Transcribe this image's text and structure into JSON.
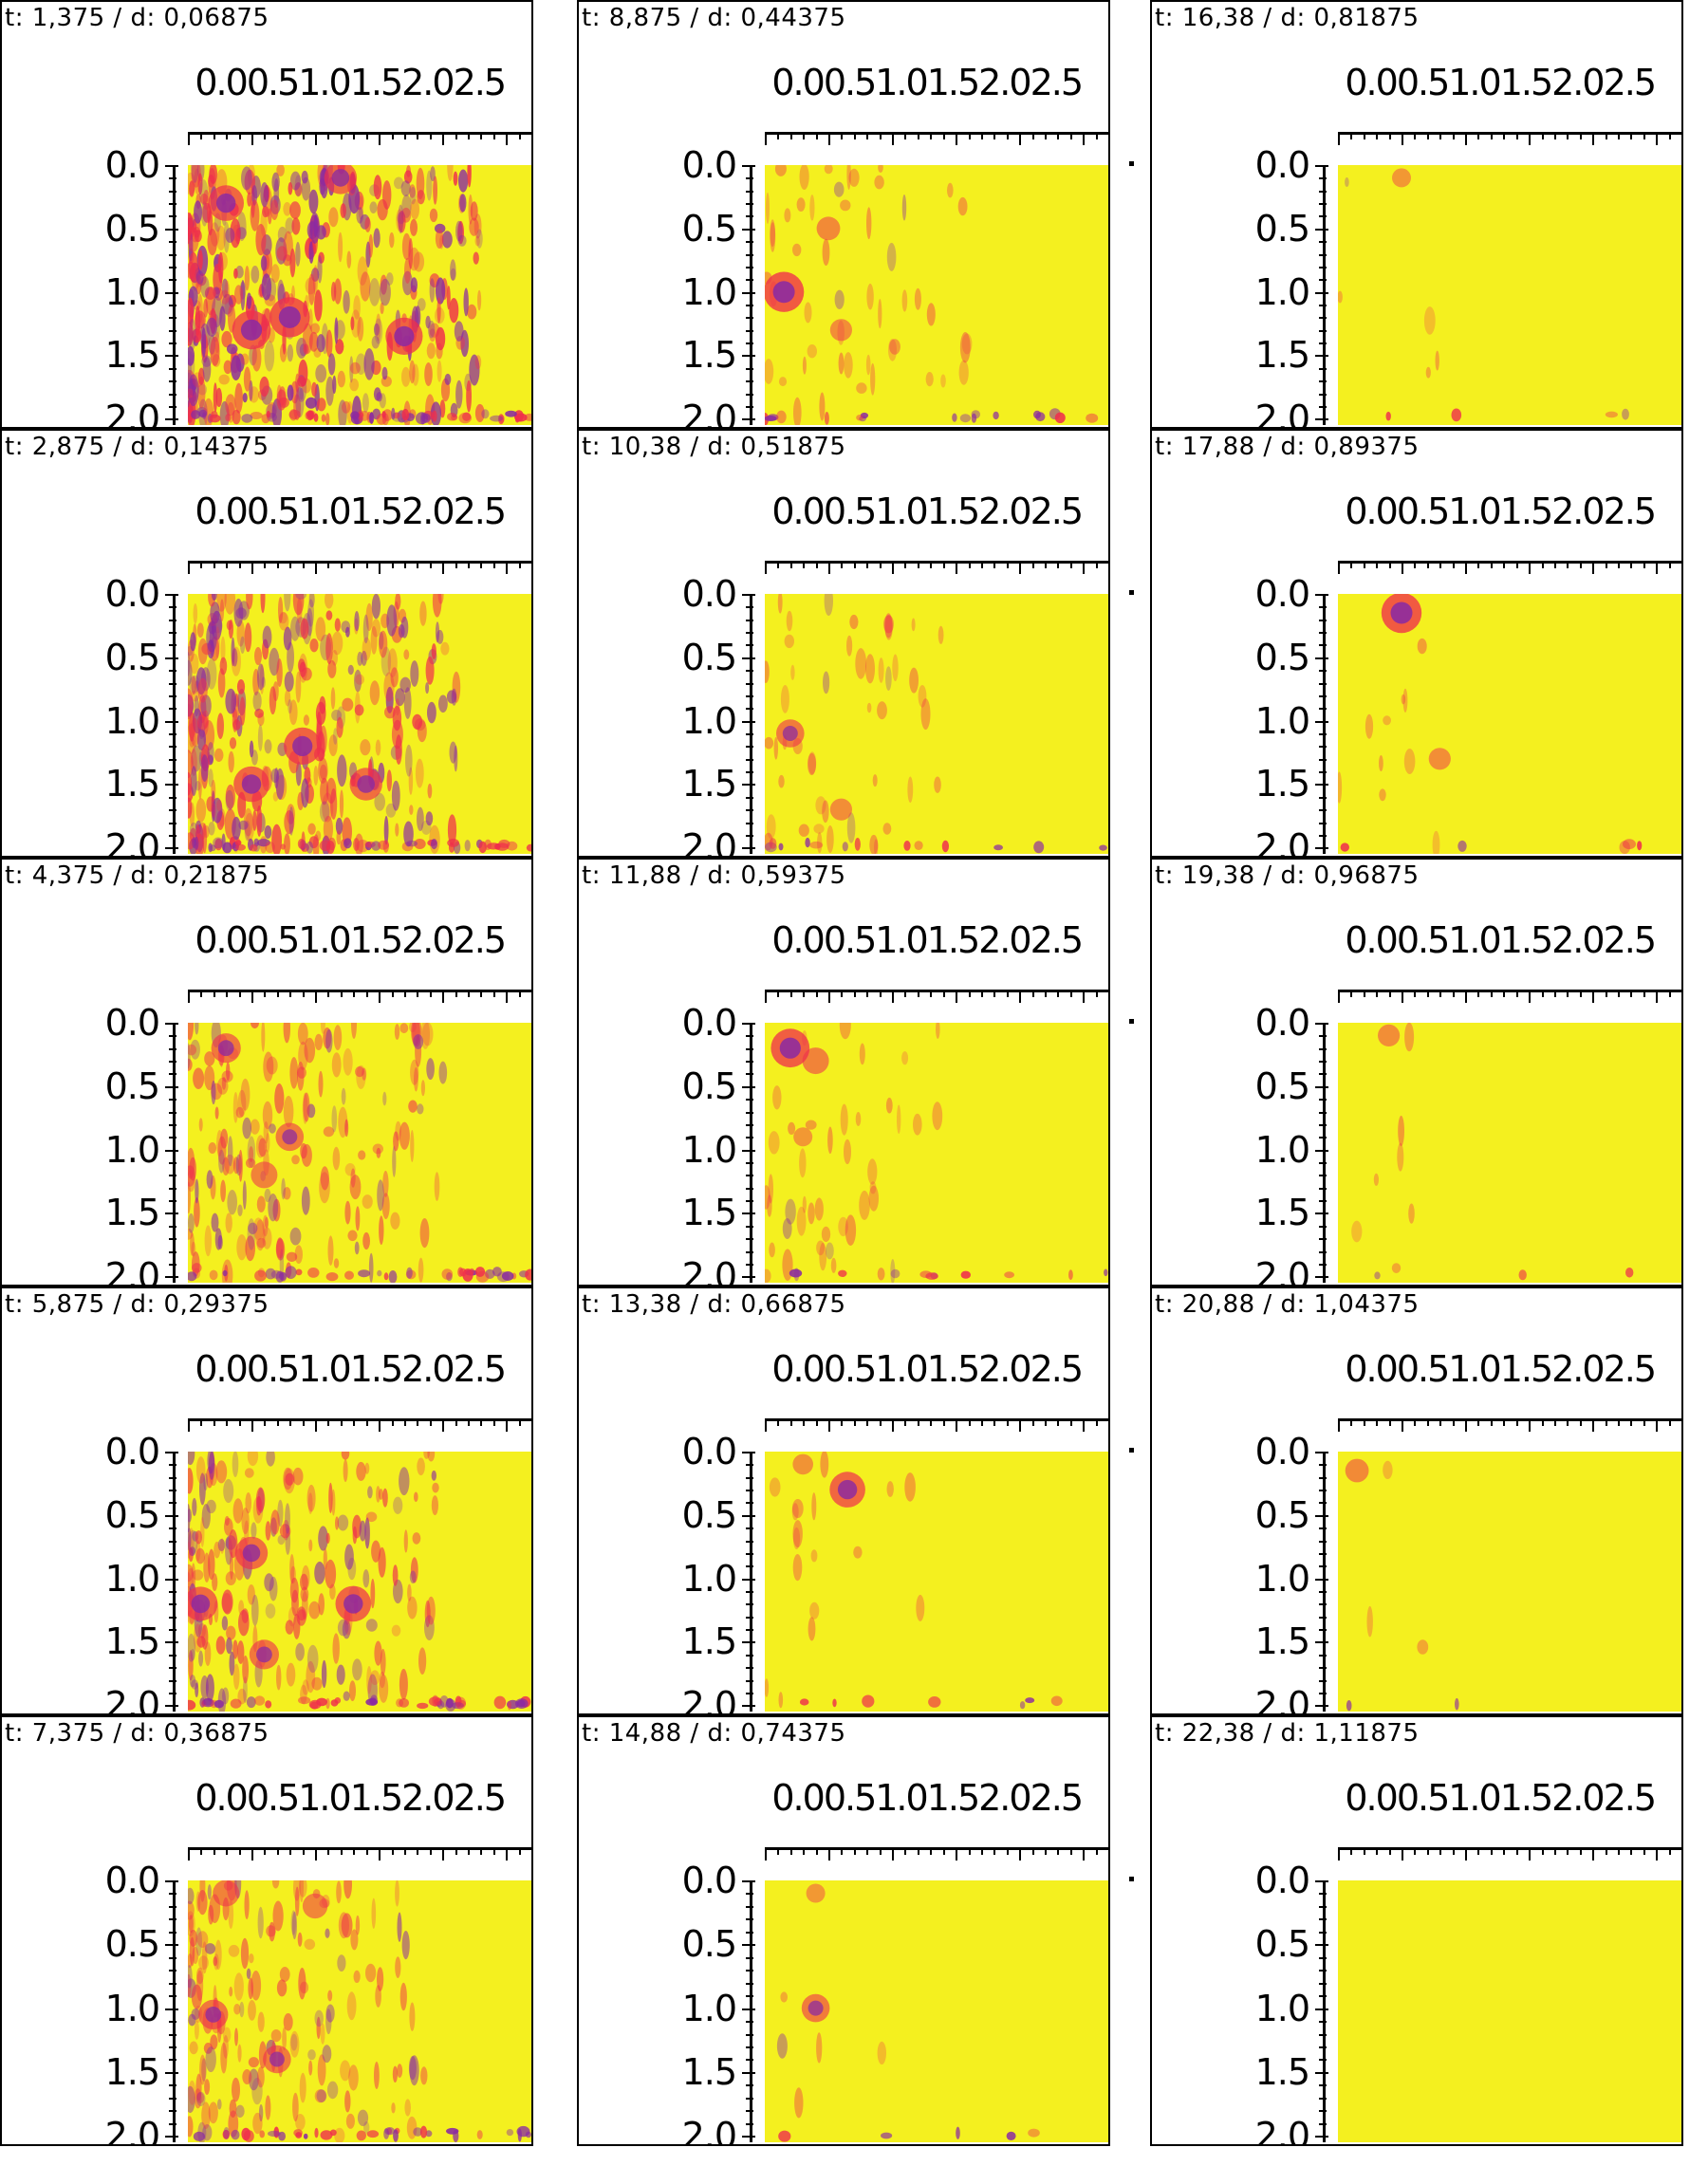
{
  "chart_data": {
    "type": "heatmap",
    "layout": "5 rows x 3 columns of small-multiple panels, read down each column",
    "colormap": [
      "#f4f01f",
      "#ef2f4c",
      "#8a2aa2"
    ],
    "x_ticks": [
      "0.0",
      "0.5",
      "1.0",
      "1.5",
      "2.0",
      "2.5"
    ],
    "y_ticks": [
      "0.0",
      "0.5",
      "1.0",
      "1.5",
      "2.0"
    ],
    "xlim": [
      0,
      2.7
    ],
    "ylim": [
      0,
      2.05
    ],
    "y_inverted": true,
    "panels": [
      {
        "title": "t: 1,375 / d: 0,06875",
        "intensity": 1.0,
        "spread": 1.0,
        "blobs": [
          [
            0.8,
            1.2,
            0.95
          ],
          [
            0.3,
            0.3,
            0.8
          ],
          [
            1.7,
            1.35,
            0.85
          ],
          [
            0.5,
            1.3,
            0.9
          ],
          [
            1.2,
            0.1,
            0.7
          ]
        ]
      },
      {
        "title": "t: 2,875 / d: 0,14375",
        "intensity": 0.85,
        "spread": 0.92,
        "blobs": [
          [
            0.9,
            1.2,
            0.85
          ],
          [
            0.5,
            1.5,
            0.8
          ],
          [
            1.4,
            1.5,
            0.7
          ]
        ]
      },
      {
        "title": "t: 4,375 / d: 0,21875",
        "intensity": 0.6,
        "spread": 0.9,
        "blobs": [
          [
            0.3,
            0.2,
            0.6
          ],
          [
            0.8,
            0.9,
            0.55
          ],
          [
            0.6,
            1.2,
            0.5
          ]
        ]
      },
      {
        "title": "t: 5,875 / d: 0,29375",
        "intensity": 0.7,
        "spread": 0.85,
        "blobs": [
          [
            0.1,
            1.2,
            0.75
          ],
          [
            0.5,
            0.8,
            0.7
          ],
          [
            1.3,
            1.2,
            0.8
          ],
          [
            0.6,
            1.6,
            0.6
          ]
        ]
      },
      {
        "title": "t: 7,375 / d: 0,36875",
        "intensity": 0.55,
        "spread": 0.82,
        "blobs": [
          [
            0.2,
            1.05,
            0.6
          ],
          [
            0.7,
            1.4,
            0.55
          ],
          [
            0.3,
            0.1,
            0.5
          ],
          [
            1.0,
            0.2,
            0.45
          ]
        ]
      },
      {
        "title": "t: 8,875 / d: 0,44375",
        "intensity": 0.3,
        "spread": 0.7,
        "blobs": [
          [
            0.15,
            1.0,
            0.95
          ],
          [
            0.5,
            0.5,
            0.4
          ],
          [
            0.6,
            1.3,
            0.35
          ]
        ]
      },
      {
        "title": "t: 10,38 / d: 0,51875",
        "intensity": 0.22,
        "spread": 0.62,
        "blobs": [
          [
            0.2,
            1.1,
            0.55
          ],
          [
            0.6,
            1.7,
            0.35
          ]
        ]
      },
      {
        "title": "t: 11,88 / d: 0,59375",
        "intensity": 0.2,
        "spread": 0.6,
        "blobs": [
          [
            0.2,
            0.2,
            0.9
          ],
          [
            0.4,
            0.3,
            0.5
          ],
          [
            0.3,
            0.9,
            0.25
          ]
        ]
      },
      {
        "title": "t: 13,38 / d: 0,66875",
        "intensity": 0.12,
        "spread": 0.6,
        "blobs": [
          [
            0.65,
            0.3,
            0.8
          ],
          [
            0.3,
            0.1,
            0.3
          ]
        ]
      },
      {
        "title": "t: 14,88 / d: 0,74375",
        "intensity": 0.08,
        "spread": 0.4,
        "blobs": [
          [
            0.4,
            1.0,
            0.55
          ],
          [
            0.4,
            0.1,
            0.25
          ]
        ]
      },
      {
        "title": "t: 16,38 / d: 0,81875",
        "intensity": 0.06,
        "spread": 0.35,
        "blobs": [
          [
            0.5,
            0.1,
            0.25
          ]
        ]
      },
      {
        "title": "t: 17,88 / d: 0,89375",
        "intensity": 0.08,
        "spread": 0.4,
        "blobs": [
          [
            0.5,
            0.15,
            0.95
          ],
          [
            0.8,
            1.3,
            0.35
          ]
        ]
      },
      {
        "title": "t: 19,38 / d: 0,96875",
        "intensity": 0.05,
        "spread": 0.3,
        "blobs": [
          [
            0.4,
            0.1,
            0.35
          ]
        ]
      },
      {
        "title": "t: 20,88 / d: 1,04375",
        "intensity": 0.03,
        "spread": 0.3,
        "blobs": [
          [
            0.15,
            0.15,
            0.4
          ]
        ]
      },
      {
        "title": "t: 22,38 / d: 1,11875",
        "intensity": 0.0,
        "spread": 0.0,
        "blobs": []
      }
    ]
  }
}
